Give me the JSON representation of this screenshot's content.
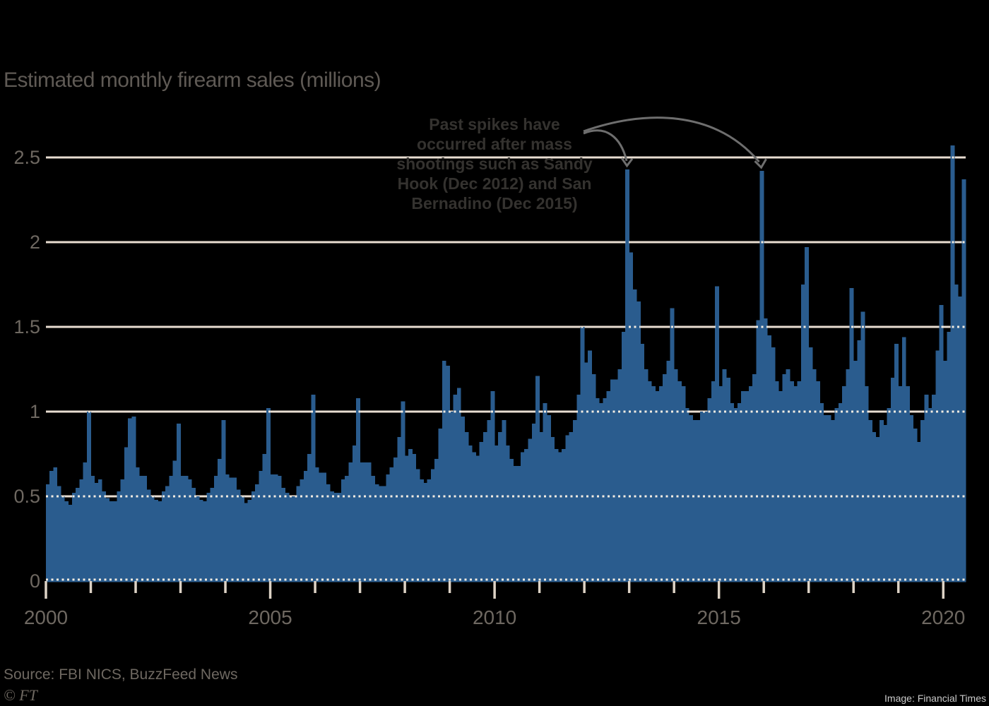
{
  "title": "Estimated monthly firearm sales (millions)",
  "annotation": {
    "lines": [
      "Past spikes have",
      "occurred after mass",
      "shootings such as Sandy",
      "Hook (Dec 2012) and San",
      "Bernadino (Dec 2015)"
    ]
  },
  "footer": {
    "source": "Source: FBI NICS, BuzzFeed News",
    "brand": "© FT",
    "image_credit": "Image: Financial Times"
  },
  "chart_data": {
    "type": "bar",
    "title": "Estimated monthly firearm sales (millions)",
    "x_unit": "month",
    "start": "2000-01",
    "end": "2020-06",
    "x_tick_years": [
      2000,
      2005,
      2010,
      2015,
      2020
    ],
    "x_tick_labels": [
      "2000",
      "2005",
      "2010",
      "2015",
      "2020"
    ],
    "x_minor_tick_every_year": true,
    "ylim": [
      0,
      2.6
    ],
    "y_ticks": [
      0,
      0.5,
      1,
      1.5,
      2,
      2.5
    ],
    "y_tick_labels": [
      "0",
      "0.5",
      "1",
      "1.5",
      "2",
      "2.5"
    ],
    "grid": true,
    "legend": "none",
    "annotation_text": "Past spikes have occurred after mass shootings such as Sandy Hook (Dec 2012) and San Bernadino (Dec 2015)",
    "arrow_targets": [
      "2012-12",
      "2015-12"
    ],
    "values": [
      0.57,
      0.65,
      0.67,
      0.56,
      0.5,
      0.47,
      0.45,
      0.52,
      0.55,
      0.6,
      0.7,
      1.0,
      0.62,
      0.58,
      0.6,
      0.53,
      0.49,
      0.47,
      0.47,
      0.53,
      0.6,
      0.79,
      0.96,
      0.97,
      0.67,
      0.62,
      0.62,
      0.54,
      0.5,
      0.48,
      0.47,
      0.53,
      0.56,
      0.62,
      0.71,
      0.93,
      0.62,
      0.62,
      0.6,
      0.55,
      0.5,
      0.48,
      0.47,
      0.52,
      0.55,
      0.62,
      0.72,
      0.95,
      0.63,
      0.61,
      0.61,
      0.54,
      0.5,
      0.46,
      0.48,
      0.53,
      0.57,
      0.65,
      0.75,
      1.02,
      0.63,
      0.63,
      0.62,
      0.55,
      0.52,
      0.5,
      0.5,
      0.56,
      0.6,
      0.65,
      0.75,
      1.1,
      0.67,
      0.64,
      0.64,
      0.57,
      0.53,
      0.52,
      0.52,
      0.6,
      0.62,
      0.7,
      0.8,
      1.08,
      0.7,
      0.7,
      0.7,
      0.62,
      0.57,
      0.56,
      0.56,
      0.63,
      0.67,
      0.73,
      0.85,
      1.06,
      0.74,
      0.78,
      0.75,
      0.66,
      0.6,
      0.58,
      0.6,
      0.66,
      0.72,
      0.9,
      1.3,
      1.27,
      1.0,
      1.1,
      1.14,
      0.97,
      0.88,
      0.8,
      0.76,
      0.74,
      0.82,
      0.88,
      0.95,
      1.12,
      0.8,
      0.88,
      0.95,
      0.8,
      0.72,
      0.68,
      0.68,
      0.76,
      0.78,
      0.84,
      0.93,
      1.21,
      0.88,
      1.05,
      0.98,
      0.85,
      0.78,
      0.76,
      0.78,
      0.86,
      0.88,
      0.95,
      1.1,
      1.5,
      1.29,
      1.36,
      1.22,
      1.08,
      1.05,
      1.08,
      1.12,
      1.19,
      1.19,
      1.25,
      1.47,
      2.43,
      1.94,
      1.72,
      1.65,
      1.4,
      1.25,
      1.18,
      1.15,
      1.12,
      1.15,
      1.22,
      1.3,
      1.61,
      1.25,
      1.18,
      1.15,
      1.02,
      0.98,
      0.95,
      0.95,
      1.0,
      1.0,
      1.08,
      1.18,
      1.74,
      1.15,
      1.25,
      1.2,
      1.05,
      1.02,
      1.05,
      1.12,
      1.12,
      1.15,
      1.22,
      1.54,
      2.42,
      1.55,
      1.45,
      1.38,
      1.18,
      1.12,
      1.22,
      1.25,
      1.18,
      1.15,
      1.18,
      1.75,
      1.97,
      1.38,
      1.25,
      1.18,
      1.05,
      0.98,
      0.98,
      0.95,
      1.02,
      1.05,
      1.15,
      1.25,
      1.73,
      1.3,
      1.42,
      1.59,
      1.15,
      0.95,
      0.88,
      0.85,
      0.95,
      0.92,
      1.02,
      1.2,
      1.4,
      1.15,
      1.44,
      1.15,
      0.98,
      0.9,
      0.82,
      0.95,
      1.1,
      1.02,
      1.1,
      1.36,
      1.63,
      1.3,
      1.47,
      2.57,
      1.75,
      1.68,
      2.37
    ],
    "colors": {
      "background": "#000000",
      "bar": "#2A5C8E",
      "gridline": "#E8DDD1",
      "grid_dots_over_bars": "#F2ECE2",
      "axis_tick": "#DCD2C5",
      "axis_text": "#6E6861",
      "title_text": "#5F5A55",
      "annotation_text": "#34322F",
      "arrow": "#6E6E6E",
      "source_text": "#6E6861",
      "image_credit_text": "#C9C9C9"
    }
  }
}
